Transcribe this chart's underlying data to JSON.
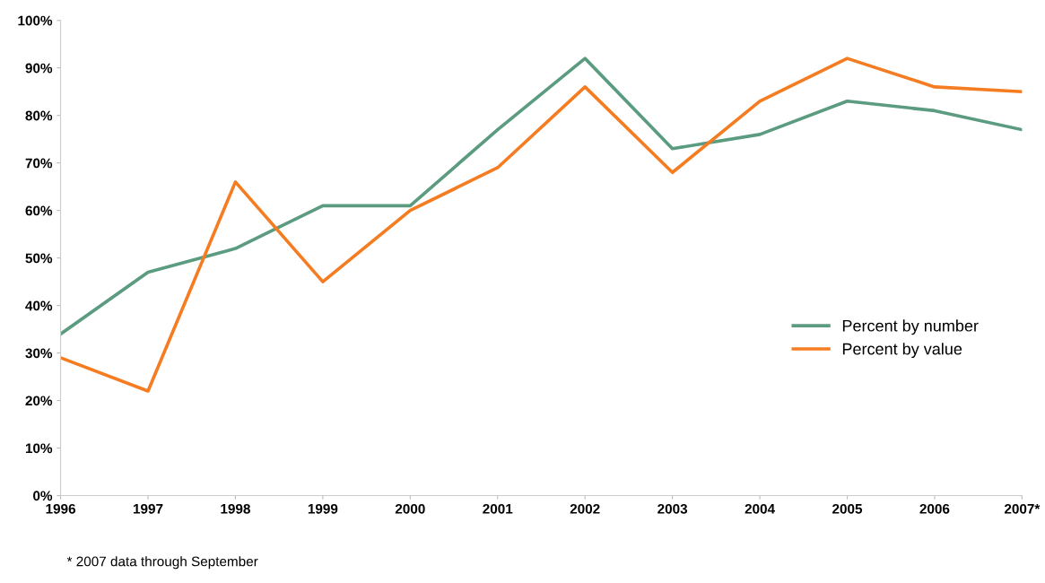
{
  "chart_data": {
    "type": "line",
    "categories": [
      "1996",
      "1997",
      "1998",
      "1999",
      "2000",
      "2001",
      "2002",
      "2003",
      "2004",
      "2005",
      "2006",
      "2007*"
    ],
    "series": [
      {
        "name": "Percent by number",
        "color": "#5b9b7f",
        "values": [
          34,
          47,
          52,
          61,
          61,
          77,
          92,
          73,
          76,
          83,
          81,
          77
        ]
      },
      {
        "name": "Percent by value",
        "color": "#f57c20",
        "values": [
          29,
          22,
          66,
          45,
          60,
          69,
          86,
          68,
          83,
          92,
          86,
          85
        ]
      }
    ],
    "ylim": [
      0,
      100
    ],
    "yticks": [
      {
        "value": 0,
        "label": "0%"
      },
      {
        "value": 10,
        "label": "10%"
      },
      {
        "value": 20,
        "label": "20%"
      },
      {
        "value": 30,
        "label": "30%"
      },
      {
        "value": 40,
        "label": "40%"
      },
      {
        "value": 50,
        "label": "50%"
      },
      {
        "value": 60,
        "label": "60%"
      },
      {
        "value": 70,
        "label": "70%"
      },
      {
        "value": 80,
        "label": "80%"
      },
      {
        "value": 90,
        "label": "90%"
      },
      {
        "value": 100,
        "label": "100%"
      }
    ],
    "grid": false,
    "legend": "right",
    "marker": "none",
    "annotations": [
      "* 2007 data through September"
    ]
  }
}
